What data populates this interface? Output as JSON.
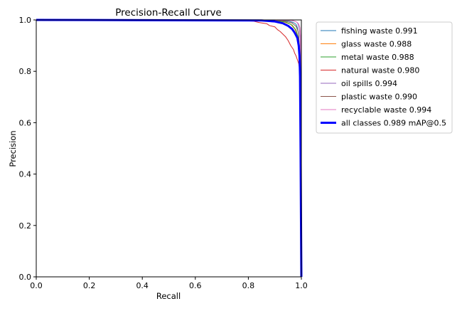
{
  "chart_data": {
    "type": "line",
    "title": "Precision-Recall Curve",
    "xlabel": "Recall",
    "ylabel": "Precision",
    "xlim": [
      0.0,
      1.0
    ],
    "ylim": [
      0.0,
      1.0
    ],
    "xticks": [
      "0.0",
      "0.2",
      "0.4",
      "0.6",
      "0.8",
      "1.0"
    ],
    "yticks": [
      "0.0",
      "0.2",
      "0.4",
      "0.6",
      "0.8",
      "1.0"
    ],
    "grid": false,
    "legend_position": "outside-upper-right",
    "series": [
      {
        "name": "fishing waste 0.991",
        "color": "#1f77b4",
        "width": 1,
        "points": [
          [
            0,
            1.0
          ],
          [
            0.9,
            0.999
          ],
          [
            0.95,
            0.996
          ],
          [
            0.97,
            0.99
          ],
          [
            0.98,
            0.983
          ],
          [
            0.985,
            0.97
          ],
          [
            0.99,
            0.94
          ],
          [
            0.993,
            0.88
          ],
          [
            0.995,
            0.7
          ],
          [
            0.997,
            0.3
          ],
          [
            1.0,
            0.0
          ]
        ]
      },
      {
        "name": "glass waste 0.988",
        "color": "#ff7f0e",
        "width": 1,
        "points": [
          [
            0,
            1.0
          ],
          [
            0.88,
            0.998
          ],
          [
            0.93,
            0.993
          ],
          [
            0.96,
            0.983
          ],
          [
            0.975,
            0.965
          ],
          [
            0.985,
            0.94
          ],
          [
            0.99,
            0.91
          ],
          [
            0.993,
            0.85
          ],
          [
            0.996,
            0.6
          ],
          [
            0.998,
            0.2
          ],
          [
            1.0,
            0.0
          ]
        ]
      },
      {
        "name": "metal waste 0.988",
        "color": "#2ca02c",
        "width": 1,
        "points": [
          [
            0,
            1.0
          ],
          [
            0.89,
            0.998
          ],
          [
            0.94,
            0.992
          ],
          [
            0.965,
            0.98
          ],
          [
            0.98,
            0.96
          ],
          [
            0.988,
            0.93
          ],
          [
            0.993,
            0.87
          ],
          [
            0.996,
            0.6
          ],
          [
            0.998,
            0.2
          ],
          [
            1.0,
            0.0
          ]
        ]
      },
      {
        "name": "natural waste 0.980",
        "color": "#d62728",
        "width": 1,
        "points": [
          [
            0,
            1.0
          ],
          [
            0.78,
            0.997
          ],
          [
            0.82,
            0.995
          ],
          [
            0.84,
            0.99
          ],
          [
            0.87,
            0.985
          ],
          [
            0.88,
            0.978
          ],
          [
            0.9,
            0.973
          ],
          [
            0.91,
            0.962
          ],
          [
            0.92,
            0.955
          ],
          [
            0.93,
            0.945
          ],
          [
            0.94,
            0.935
          ],
          [
            0.95,
            0.92
          ],
          [
            0.96,
            0.9
          ],
          [
            0.97,
            0.885
          ],
          [
            0.975,
            0.87
          ],
          [
            0.98,
            0.86
          ],
          [
            0.985,
            0.845
          ],
          [
            0.99,
            0.83
          ],
          [
            0.993,
            0.81
          ],
          [
            0.995,
            0.7
          ],
          [
            0.997,
            0.4
          ],
          [
            1.0,
            0.0
          ]
        ]
      },
      {
        "name": "oil spills 0.994",
        "color": "#9467bd",
        "width": 1,
        "points": [
          [
            0,
            1.0
          ],
          [
            0.93,
            0.999
          ],
          [
            0.96,
            0.998
          ],
          [
            0.975,
            0.995
          ],
          [
            0.985,
            0.99
          ],
          [
            0.99,
            0.975
          ],
          [
            0.993,
            0.96
          ],
          [
            0.996,
            0.92
          ],
          [
            0.998,
            0.6
          ],
          [
            0.999,
            0.2
          ],
          [
            1.0,
            0.0
          ]
        ]
      },
      {
        "name": "plastic waste 0.990",
        "color": "#8c564b",
        "width": 1,
        "points": [
          [
            0,
            1.0
          ],
          [
            0.9,
            0.999
          ],
          [
            0.94,
            0.995
          ],
          [
            0.965,
            0.988
          ],
          [
            0.98,
            0.975
          ],
          [
            0.988,
            0.955
          ],
          [
            0.993,
            0.9
          ],
          [
            0.996,
            0.7
          ],
          [
            0.998,
            0.25
          ],
          [
            1.0,
            0.0
          ]
        ]
      },
      {
        "name": "recyclable waste 0.994",
        "color": "#e377c2",
        "width": 1,
        "points": [
          [
            0,
            1.0
          ],
          [
            0.94,
            0.999
          ],
          [
            0.97,
            0.997
          ],
          [
            0.98,
            0.993
          ],
          [
            0.99,
            0.985
          ],
          [
            0.995,
            0.97
          ],
          [
            0.997,
            0.94
          ],
          [
            0.998,
            0.85
          ],
          [
            0.999,
            0.4
          ],
          [
            1.0,
            0.0
          ]
        ]
      },
      {
        "name": "all classes 0.989 mAP@0.5",
        "color": "#0000ff",
        "width": 3,
        "points": [
          [
            0,
            1.0
          ],
          [
            0.85,
            0.998
          ],
          [
            0.9,
            0.994
          ],
          [
            0.93,
            0.987
          ],
          [
            0.95,
            0.977
          ],
          [
            0.965,
            0.965
          ],
          [
            0.975,
            0.95
          ],
          [
            0.985,
            0.93
          ],
          [
            0.99,
            0.9
          ],
          [
            0.993,
            0.86
          ],
          [
            0.995,
            0.78
          ],
          [
            0.997,
            0.5
          ],
          [
            0.999,
            0.15
          ],
          [
            1.0,
            0.0
          ]
        ]
      }
    ]
  }
}
